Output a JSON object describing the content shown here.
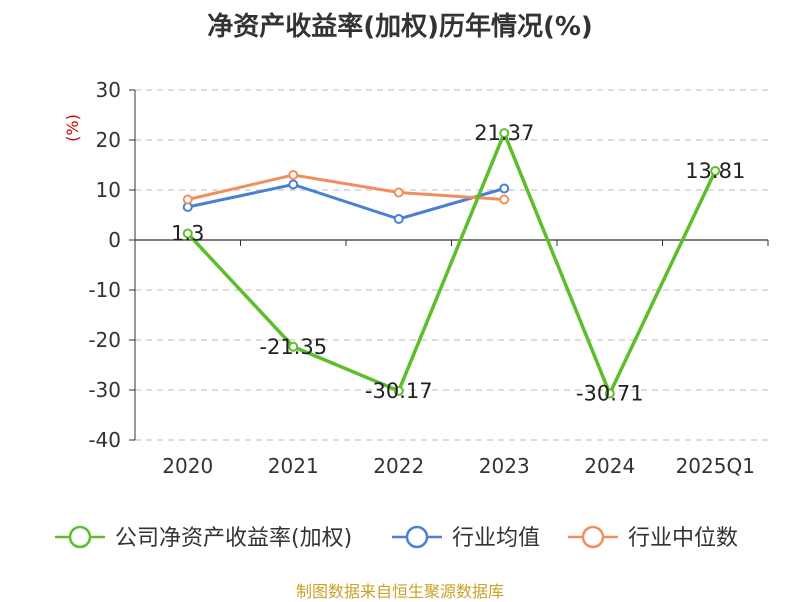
{
  "title": "净资产收益率(加权)历年情况(%)",
  "source": "制图数据来自恒生聚源数据库",
  "colors": {
    "company": "#5cbf2a",
    "industry_avg": "#4a7fd4",
    "industry_median": "#f28e5e",
    "grid": "#c8c8c8",
    "axis": "#333333"
  },
  "chart_data": {
    "type": "line",
    "title": "净资产收益率(加权)历年情况(%)",
    "ylabel": "(%)",
    "xlabel": "",
    "categories": [
      "2020",
      "2021",
      "2022",
      "2023",
      "2024",
      "2025Q1"
    ],
    "ylim": [
      -40,
      30
    ],
    "yticks": [
      -40,
      -30,
      -20,
      -10,
      0,
      10,
      20,
      30
    ],
    "grid": true,
    "legend_position": "bottom",
    "series": [
      {
        "name": "公司净资产收益率(加权)",
        "key": "company",
        "values": [
          1.3,
          -21.35,
          -30.17,
          21.37,
          -30.71,
          13.81
        ],
        "labels": [
          "1.3",
          "-21.35",
          "-30.17",
          "21.37",
          "-30.71",
          "13.81"
        ]
      },
      {
        "name": "行业均值",
        "key": "industry_avg",
        "values": [
          6.6,
          11.1,
          4.2,
          10.3,
          null,
          null
        ]
      },
      {
        "name": "行业中位数",
        "key": "industry_median",
        "values": [
          8.1,
          13.0,
          9.5,
          8.1,
          null,
          null
        ]
      }
    ]
  }
}
